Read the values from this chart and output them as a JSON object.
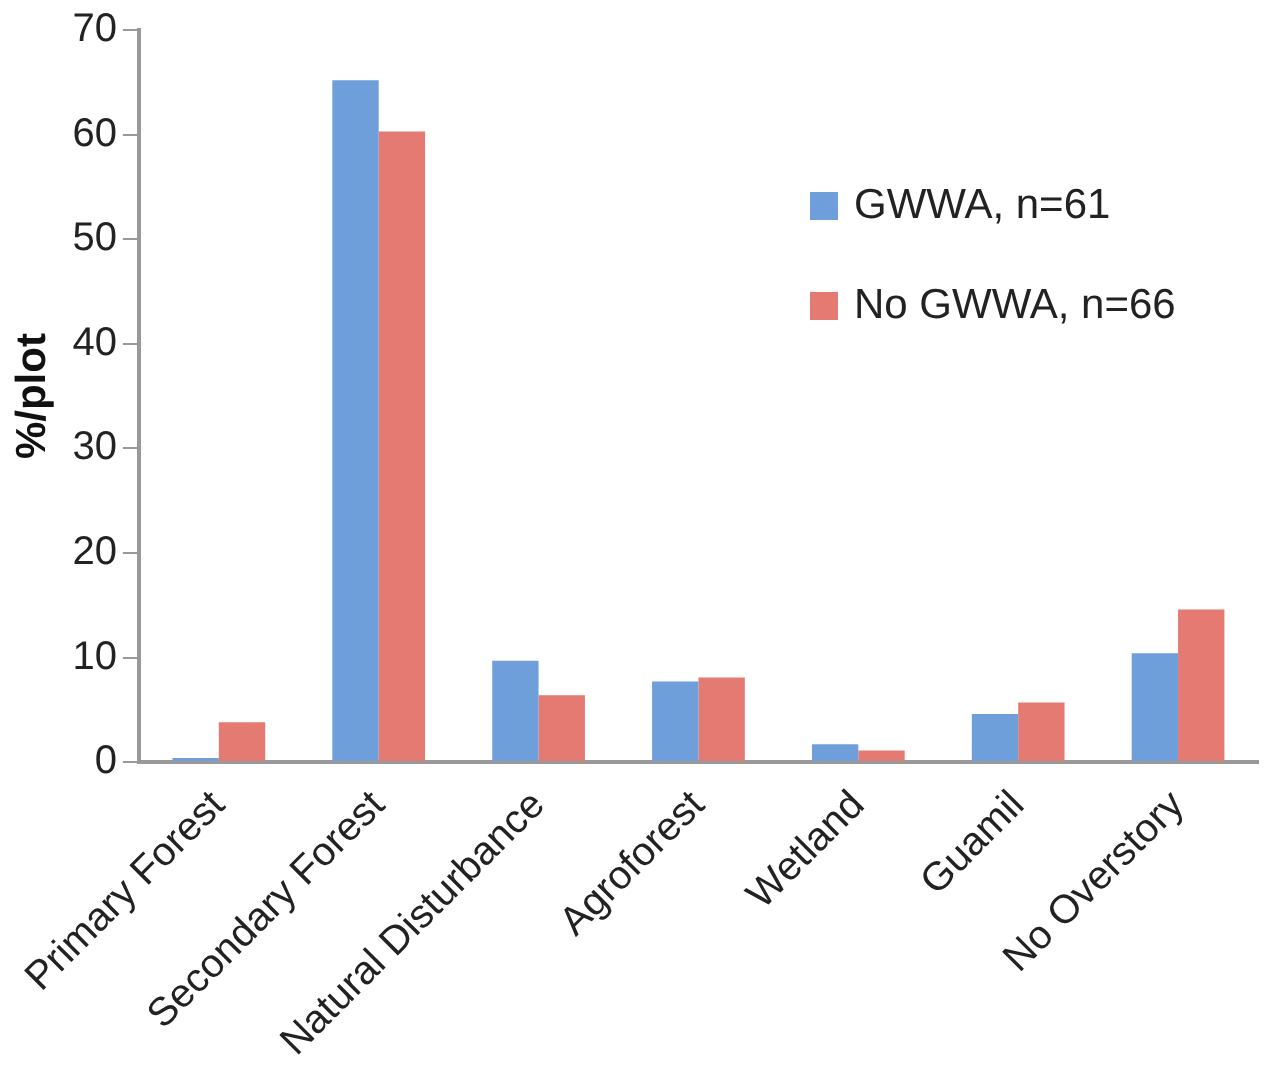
{
  "chart_data": {
    "type": "bar",
    "ylabel": "%/plot",
    "categories": [
      "Primary Forest",
      "Secondary Forest",
      "Natural Disturbance",
      "Agroforest",
      "Wetland",
      "Guamil",
      "No Overstory"
    ],
    "series": [
      {
        "name": "GWWA, n=61",
        "color": "#6f9fda",
        "values": [
          0.4,
          65.2,
          9.7,
          7.7,
          1.7,
          4.6,
          10.4
        ]
      },
      {
        "name": "No GWWA, n=66",
        "color": "#e47a72",
        "values": [
          3.8,
          60.3,
          6.4,
          8.1,
          1.1,
          5.7,
          14.6
        ]
      }
    ],
    "ylim": [
      0,
      70
    ],
    "yticks": [
      0,
      10,
      20,
      30,
      40,
      50,
      60,
      70
    ],
    "grid": false,
    "legend": "top right"
  }
}
